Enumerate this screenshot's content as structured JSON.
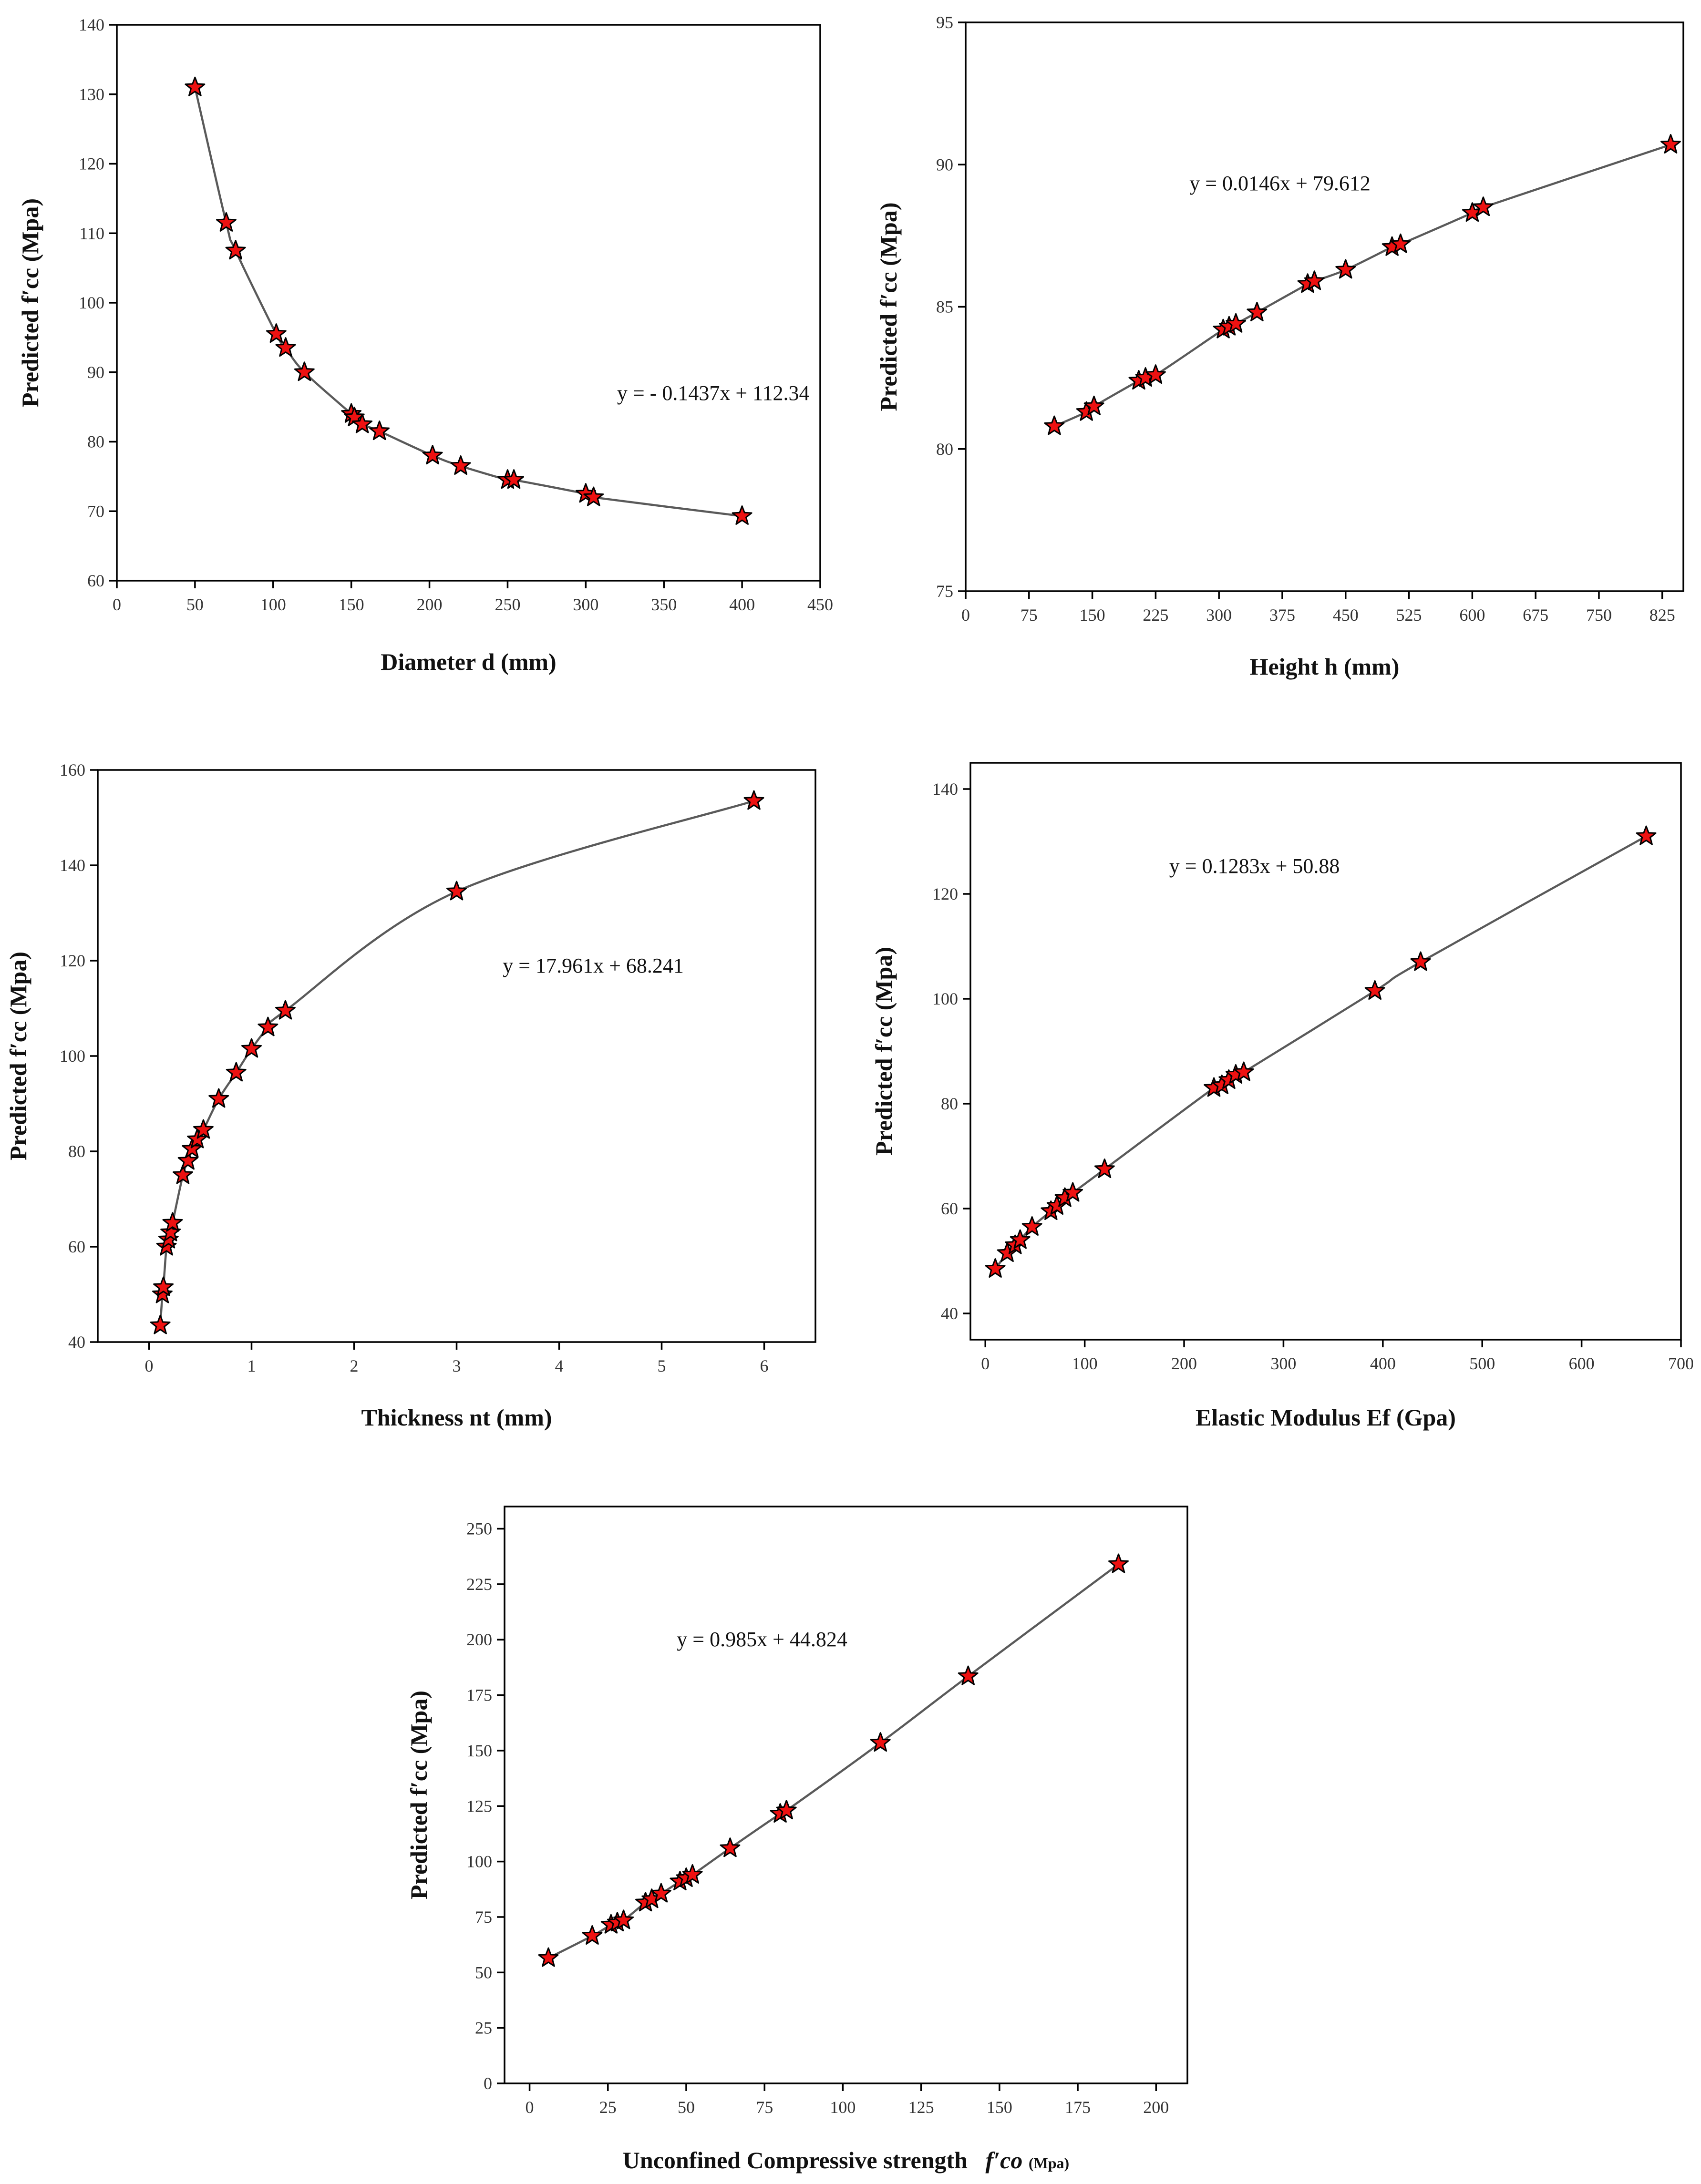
{
  "chart_data": [
    {
      "id": "diameter",
      "type": "scatter",
      "marker": "star",
      "color": "#ee1111",
      "title": "",
      "xlabel": "Diameter   d (mm)",
      "ylabel": "Predicted f′cc (Mpa)",
      "xlim": [
        0,
        450
      ],
      "ylim": [
        60,
        140
      ],
      "xticks": [
        0,
        50,
        100,
        150,
        200,
        250,
        300,
        350,
        400,
        450
      ],
      "yticks": [
        60,
        70,
        80,
        90,
        100,
        110,
        120,
        130,
        140
      ],
      "annotation": "y = - 0.1437x + 112.34",
      "annotation_at": [
        320,
        86
      ],
      "x": [
        50,
        70,
        76,
        102,
        108,
        120,
        150,
        152,
        157,
        168,
        202,
        220,
        250,
        254,
        300,
        305,
        400
      ],
      "y": [
        131,
        111.5,
        107.5,
        95.5,
        93.5,
        90,
        84,
        83.5,
        82.5,
        81.5,
        78,
        76.5,
        74.5,
        74.5,
        72.5,
        72,
        69.3
      ]
    },
    {
      "id": "height",
      "type": "scatter",
      "marker": "star",
      "color": "#ee1111",
      "title": "",
      "xlabel": "Height    h (mm)",
      "ylabel": "Predicted f′cc (Mpa)",
      "xlim": [
        0,
        850
      ],
      "ylim": [
        75,
        95
      ],
      "xticks": [
        0,
        75,
        150,
        225,
        300,
        375,
        450,
        525,
        600,
        675,
        750,
        825
      ],
      "yticks": [
        75,
        80,
        85,
        90,
        95
      ],
      "annotation": "y = 0.0146x + 79.612",
      "annotation_at": [
        265,
        89.1
      ],
      "x": [
        105,
        143,
        152,
        205,
        213,
        225,
        305,
        312,
        320,
        345,
        405,
        413,
        450,
        505,
        515,
        600,
        613,
        835
      ],
      "y": [
        80.8,
        81.3,
        81.5,
        82.4,
        82.5,
        82.6,
        84.2,
        84.3,
        84.4,
        84.8,
        85.8,
        85.9,
        86.3,
        87.1,
        87.2,
        88.3,
        88.5,
        90.7
      ]
    },
    {
      "id": "thickness",
      "type": "scatter",
      "marker": "star",
      "color": "#ee1111",
      "title": "",
      "xlabel": "Thickness    nt (mm)",
      "ylabel": "Predicted f′cc (Mpa)",
      "xlim": [
        -0.5,
        6.5
      ],
      "ylim": [
        40,
        160
      ],
      "xticks": [
        0,
        1,
        2,
        3,
        4,
        5,
        6
      ],
      "yticks": [
        40,
        60,
        80,
        100,
        120,
        140,
        160
      ],
      "annotation": "y = 17.961x + 68.241",
      "annotation_at": [
        3.45,
        117.5
      ],
      "x": [
        0.11,
        0.13,
        0.14,
        0.17,
        0.19,
        0.21,
        0.23,
        0.33,
        0.38,
        0.42,
        0.47,
        0.53,
        0.68,
        0.85,
        1.0,
        1.16,
        1.33,
        3.0,
        5.9
      ],
      "y": [
        43.5,
        50,
        51.5,
        60,
        61.5,
        63,
        65,
        75,
        78,
        80.5,
        82.5,
        84.5,
        91,
        96.5,
        101.5,
        106,
        109.5,
        134.5,
        153.5
      ]
    },
    {
      "id": "elastic-modulus",
      "type": "scatter",
      "marker": "star",
      "color": "#ee1111",
      "title": "",
      "xlabel": "Elastic Modulus    Ef (Gpa)",
      "ylabel": "Predicted f′cc (Mpa)",
      "xlim": [
        -15,
        700
      ],
      "ylim": [
        35,
        145
      ],
      "xticks": [
        0,
        100,
        200,
        300,
        400,
        500,
        600,
        700
      ],
      "yticks": [
        40,
        60,
        80,
        100,
        120,
        140
      ],
      "annotation": "y = 0.1283x + 50.88",
      "annotation_at": [
        185,
        124
      ],
      "x": [
        10,
        22,
        30,
        35,
        47,
        66,
        72,
        80,
        88,
        120,
        230,
        238,
        245,
        252,
        260,
        392,
        438,
        665
      ],
      "y": [
        48.5,
        51.5,
        53,
        54,
        56.5,
        59.5,
        60.5,
        62,
        63,
        67.5,
        83,
        83.5,
        84.5,
        85.5,
        86,
        101.5,
        107,
        131
      ]
    },
    {
      "id": "unconfined-strength",
      "type": "scatter",
      "marker": "star",
      "color": "#ee1111",
      "title": "",
      "xlabel": "Unconfined Compressive strength",
      "xlabel_symbol": "f′co",
      "xlabel_unit": "(Mpa)",
      "ylabel": "Predicted f′cc (Mpa)",
      "xlim": [
        -8,
        210
      ],
      "ylim": [
        0,
        260
      ],
      "xticks": [
        0,
        25,
        50,
        75,
        100,
        125,
        150,
        175,
        200
      ],
      "yticks": [
        0,
        25,
        50,
        75,
        100,
        125,
        150,
        175,
        200,
        225,
        250
      ],
      "annotation": "y = 0.985x + 44.824",
      "annotation_at": [
        47,
        197
      ],
      "x": [
        6,
        20,
        26,
        28,
        30,
        37,
        39,
        42,
        48,
        50,
        52,
        64,
        80,
        82,
        112,
        140,
        188
      ],
      "y": [
        56.5,
        66.5,
        71.5,
        72.5,
        73.5,
        81.5,
        83,
        85.5,
        91,
        92.5,
        94,
        106,
        121.5,
        123,
        153.5,
        183.5,
        234
      ]
    }
  ]
}
